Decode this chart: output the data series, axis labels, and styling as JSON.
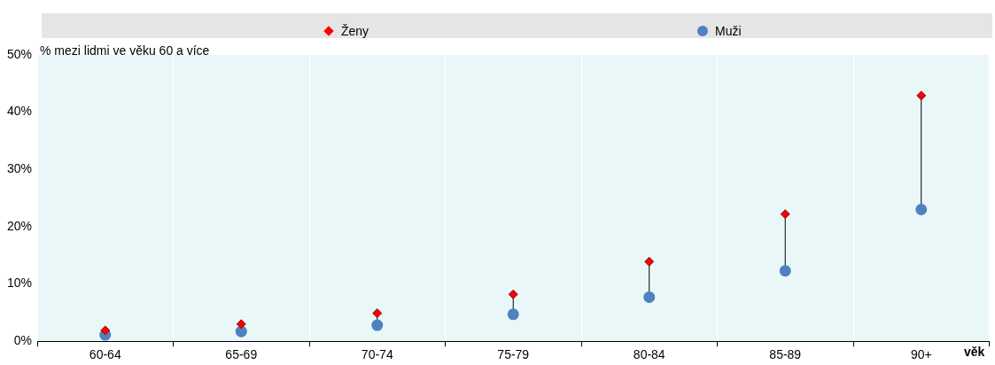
{
  "chart_data": {
    "type": "scatter",
    "annotations": [
      "% mezi lidmi ve věku 60 a více"
    ],
    "xlabel": "věk",
    "categories": [
      "60-64",
      "65-69",
      "70-74",
      "75-79",
      "80-84",
      "85-89",
      "90+"
    ],
    "series": [
      {
        "name": "Ženy",
        "color": "#ff0000",
        "marker": "diamond",
        "values": [
          1.9,
          3.0,
          4.9,
          8.2,
          13.9,
          22.2,
          42.9
        ]
      },
      {
        "name": "Muži",
        "color": "#4f81bd",
        "marker": "circle",
        "values": [
          1.1,
          1.7,
          2.8,
          4.7,
          7.7,
          12.3,
          23.0
        ]
      }
    ],
    "ylim": [
      0,
      50
    ],
    "yticks": [
      {
        "value": 0,
        "label": "0%"
      },
      {
        "value": 10,
        "label": "10%"
      },
      {
        "value": 20,
        "label": "20%"
      },
      {
        "value": 30,
        "label": "30%"
      },
      {
        "value": 40,
        "label": "40%"
      },
      {
        "value": 50,
        "label": "50%"
      }
    ],
    "grid": "x",
    "legend": "top"
  }
}
